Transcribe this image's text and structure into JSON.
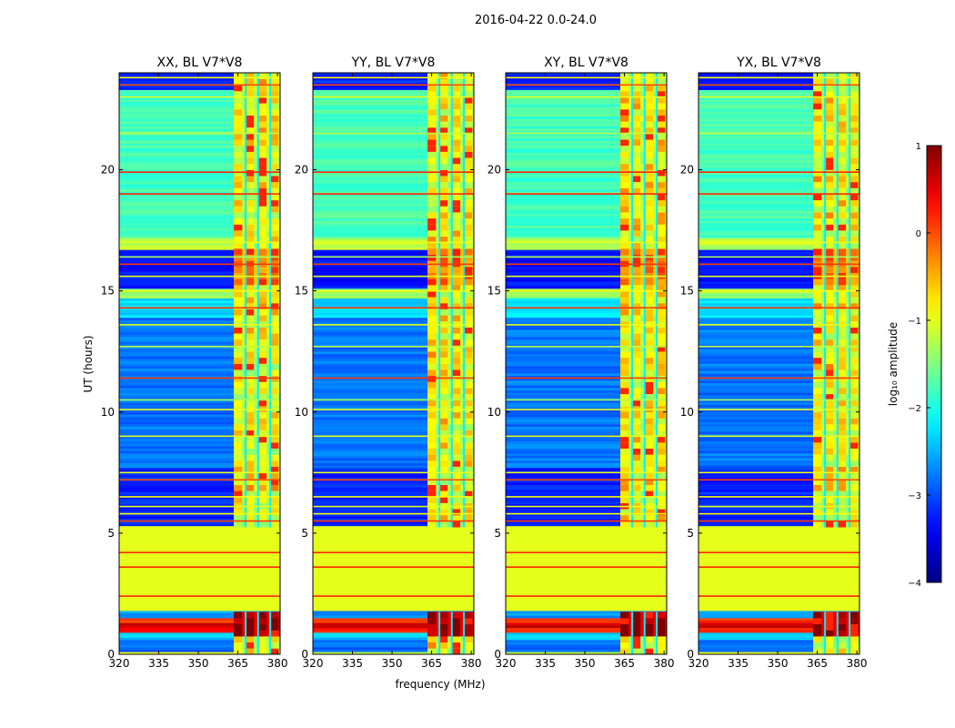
{
  "chart_data": {
    "type": "heatmap",
    "title": "2016-04-22 0.0-24.0",
    "xlabel": "frequency (MHz)",
    "ylabel": "UT (hours)",
    "xlim": [
      320,
      381
    ],
    "ylim": [
      0,
      24
    ],
    "x_ticks": [
      320,
      335,
      350,
      365,
      380
    ],
    "y_ticks": [
      0,
      5,
      10,
      15,
      20
    ],
    "colormap": "jet",
    "colorbar": {
      "label": "log₁₀ amplitude",
      "min": -4,
      "max": 1,
      "ticks": [
        {
          "value": 1,
          "label": "1"
        },
        {
          "value": 0,
          "label": "0"
        },
        {
          "value": -1,
          "label": "−1"
        },
        {
          "value": -2,
          "label": "−2"
        },
        {
          "value": -3,
          "label": "−3"
        },
        {
          "value": -4,
          "label": "−4"
        }
      ]
    },
    "rfi_band_mhz": [
      363.5,
      381
    ],
    "rfi_columns_mhz": [
      363.8,
      368.2,
      373.0,
      377.6
    ],
    "flagged_interval_hours": [
      1.8,
      5.3
    ],
    "panels": [
      {
        "name": "XX, BL V7*V8"
      },
      {
        "name": "YY, BL V7*V8"
      },
      {
        "name": "XY, BL V7*V8"
      },
      {
        "name": "YX, BL V7*V8"
      }
    ],
    "time_segments": [
      {
        "from": 0.0,
        "to": 0.1,
        "level": -1.0
      },
      {
        "from": 0.1,
        "to": 0.6,
        "level": -2.9
      },
      {
        "from": 0.6,
        "to": 0.95,
        "level": -2.4
      },
      {
        "from": 0.95,
        "to": 1.05,
        "level": 0.3
      },
      {
        "from": 1.05,
        "to": 1.35,
        "level": 0.6
      },
      {
        "from": 1.35,
        "to": 1.55,
        "level": 0.1
      },
      {
        "from": 1.55,
        "to": 1.8,
        "level": -2.6
      },
      {
        "from": 1.8,
        "to": 5.3,
        "level": -1.0
      },
      {
        "from": 5.3,
        "to": 7.7,
        "level": -3.2
      },
      {
        "from": 7.7,
        "to": 13.9,
        "level": -2.8
      },
      {
        "from": 13.9,
        "to": 14.7,
        "level": -2.3
      },
      {
        "from": 14.7,
        "to": 15.1,
        "level": -1.4
      },
      {
        "from": 15.1,
        "to": 16.7,
        "level": -3.3
      },
      {
        "from": 16.7,
        "to": 17.2,
        "level": -1.2
      },
      {
        "from": 17.2,
        "to": 23.3,
        "level": -1.8
      },
      {
        "from": 23.3,
        "to": 24.0,
        "level": -3.2
      }
    ],
    "horizontal_lines": [
      {
        "t": 2.4,
        "level": 0.2
      },
      {
        "t": 3.6,
        "level": 0.2
      },
      {
        "t": 4.2,
        "level": 0.2
      },
      {
        "t": 5.5,
        "level": 0.1
      },
      {
        "t": 5.8,
        "level": -0.9
      },
      {
        "t": 6.1,
        "level": -1.0
      },
      {
        "t": 6.5,
        "level": -0.9
      },
      {
        "t": 7.2,
        "level": 0.0
      },
      {
        "t": 7.5,
        "level": -1.0
      },
      {
        "t": 9.0,
        "level": -1.0
      },
      {
        "t": 10.1,
        "level": -1.0
      },
      {
        "t": 10.5,
        "level": -1.3
      },
      {
        "t": 11.4,
        "level": 0.1
      },
      {
        "t": 12.7,
        "level": -1.2
      },
      {
        "t": 13.6,
        "level": -1.0
      },
      {
        "t": 14.3,
        "level": 0.1
      },
      {
        "t": 15.0,
        "level": -0.9
      },
      {
        "t": 15.6,
        "level": -1.0
      },
      {
        "t": 16.1,
        "level": 0.1
      },
      {
        "t": 16.4,
        "level": -1.3
      },
      {
        "t": 17.0,
        "level": -1.0
      },
      {
        "t": 19.0,
        "level": 0.2
      },
      {
        "t": 19.9,
        "level": 0.2
      },
      {
        "t": 21.5,
        "level": -1.2
      },
      {
        "t": 23.0,
        "level": -1.0
      },
      {
        "t": 23.5,
        "level": 0.0
      },
      {
        "t": 23.8,
        "level": -0.9
      }
    ]
  }
}
